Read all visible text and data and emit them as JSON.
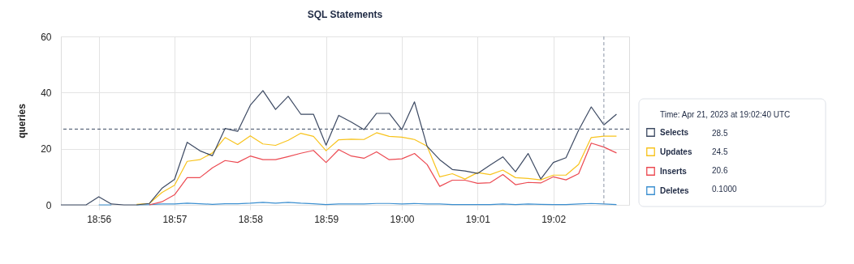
{
  "chart_data": {
    "type": "line",
    "title": "SQL Statements",
    "ylabel": "queries",
    "x": [
      "2023-04-21T18:55:30",
      "2023-04-21T18:55:40",
      "2023-04-21T18:55:50",
      "2023-04-21T18:56:00",
      "2023-04-21T18:56:10",
      "2023-04-21T18:56:20",
      "2023-04-21T18:56:30",
      "2023-04-21T18:56:40",
      "2023-04-21T18:56:50",
      "2023-04-21T18:57:00",
      "2023-04-21T18:57:10",
      "2023-04-21T18:57:20",
      "2023-04-21T18:57:30",
      "2023-04-21T18:57:40",
      "2023-04-21T18:57:50",
      "2023-04-21T18:58:00",
      "2023-04-21T18:58:10",
      "2023-04-21T18:58:20",
      "2023-04-21T18:58:30",
      "2023-04-21T18:58:40",
      "2023-04-21T18:58:50",
      "2023-04-21T18:59:00",
      "2023-04-21T18:59:10",
      "2023-04-21T18:59:20",
      "2023-04-21T18:59:30",
      "2023-04-21T18:59:40",
      "2023-04-21T18:59:50",
      "2023-04-21T19:00:00",
      "2023-04-21T19:00:10",
      "2023-04-21T19:00:20",
      "2023-04-21T19:00:30",
      "2023-04-21T19:00:40",
      "2023-04-21T19:00:50",
      "2023-04-21T19:01:00",
      "2023-04-21T19:01:10",
      "2023-04-21T19:01:20",
      "2023-04-21T19:01:30",
      "2023-04-21T19:01:40",
      "2023-04-21T19:01:50",
      "2023-04-21T19:02:00",
      "2023-04-21T19:02:10",
      "2023-04-21T19:02:20",
      "2023-04-21T19:02:30",
      "2023-04-21T19:02:40",
      "2023-04-21T19:02:50"
    ],
    "series": [
      {
        "name": "Selects",
        "color": "#3d4a63",
        "values": [
          0,
          0,
          0,
          2.9,
          0.3,
          0,
          0,
          0.5,
          5.9,
          9.1,
          22.3,
          19.3,
          17.5,
          27.2,
          26.2,
          35.5,
          40.7,
          34.0,
          38.7,
          32.3,
          32.3,
          21.3,
          31.9,
          29.5,
          26.8,
          32.6,
          32.6,
          26.8,
          36.7,
          20.9,
          16.1,
          12.6,
          12.1,
          11.2,
          14.2,
          17.1,
          11.8,
          18.3,
          9.2,
          15.1,
          16.8,
          26.6,
          34.9,
          28.5,
          32.3
        ]
      },
      {
        "name": "Updates",
        "color": "#f8c31c",
        "values": [
          null,
          null,
          null,
          null,
          null,
          null,
          0.2,
          0.5,
          4.4,
          7.0,
          15.5,
          16.1,
          18.5,
          24.0,
          21.5,
          24.6,
          21.7,
          21.2,
          23.0,
          25.5,
          24.4,
          19.3,
          23.2,
          23.4,
          23.3,
          25.7,
          24.4,
          24.1,
          23.3,
          20.9,
          10.0,
          11.1,
          9.2,
          11.5,
          10.8,
          12.4,
          9.7,
          9.4,
          8.9,
          10.6,
          10.6,
          14.4,
          24.0,
          24.5,
          24.5
        ]
      },
      {
        "name": "Inserts",
        "color": "#ec4a52",
        "values": [
          null,
          null,
          null,
          null,
          null,
          null,
          null,
          0,
          1.1,
          3.6,
          9.7,
          9.7,
          13.2,
          15.8,
          15.1,
          17.4,
          16.1,
          16.1,
          17.2,
          18.4,
          19.4,
          15.1,
          19.7,
          17.4,
          16.6,
          18.9,
          16.1,
          16.4,
          18.3,
          14.4,
          6.6,
          8.8,
          8.8,
          7.7,
          7.9,
          10.8,
          7.2,
          8.0,
          7.8,
          10.0,
          8.9,
          11.1,
          22.0,
          20.6,
          18.5
        ]
      },
      {
        "name": "Deletes",
        "color": "#3b8fd0",
        "values": [
          null,
          null,
          null,
          0,
          0,
          null,
          0,
          0.1,
          0.3,
          0.3,
          0.6,
          0.4,
          0.2,
          0.4,
          0.4,
          0.6,
          0.9,
          0.6,
          0.9,
          0.6,
          0.4,
          0.1,
          0.3,
          0.3,
          0.3,
          0.5,
          0.5,
          0.3,
          0.5,
          0.3,
          0.3,
          0.1,
          0.1,
          0.1,
          0.1,
          0.3,
          0.1,
          0.3,
          0.2,
          0.1,
          0.1,
          0.3,
          0.5,
          0.3,
          0.1
        ]
      }
    ],
    "xlim": [
      "2023-04-21T18:55:30",
      "2023-04-21T19:03:00"
    ],
    "xticks": [
      {
        "value": "2023-04-21T18:56",
        "label": "18:56"
      },
      {
        "value": "2023-04-21T18:57",
        "label": "18:57"
      },
      {
        "value": "2023-04-21T18:58",
        "label": "18:58"
      },
      {
        "value": "2023-04-21T18:59",
        "label": "18:59"
      },
      {
        "value": "2023-04-21T19:00",
        "label": "19:00"
      },
      {
        "value": "2023-04-21T19:01",
        "label": "19:01"
      },
      {
        "value": "2023-04-21T19:02",
        "label": "19:02"
      }
    ],
    "ylim": [
      0,
      60
    ],
    "yticks": [
      0,
      20,
      40,
      60
    ],
    "grid": true,
    "legend": "right",
    "line_style": "solid",
    "ref_lines": [
      {
        "axis": "x",
        "value": "2023-04-21T19:02:40",
        "color": "#8a94a6",
        "line_style": "dashed"
      },
      {
        "axis": "y",
        "value": 27,
        "color": "#3d4a63",
        "line_style": "dashed"
      }
    ],
    "annotations": [
      "Time: Apr 21, 2023 at 19:02:40 UTC",
      "28.5",
      "24.5",
      "20.6",
      "0.1000"
    ]
  }
}
